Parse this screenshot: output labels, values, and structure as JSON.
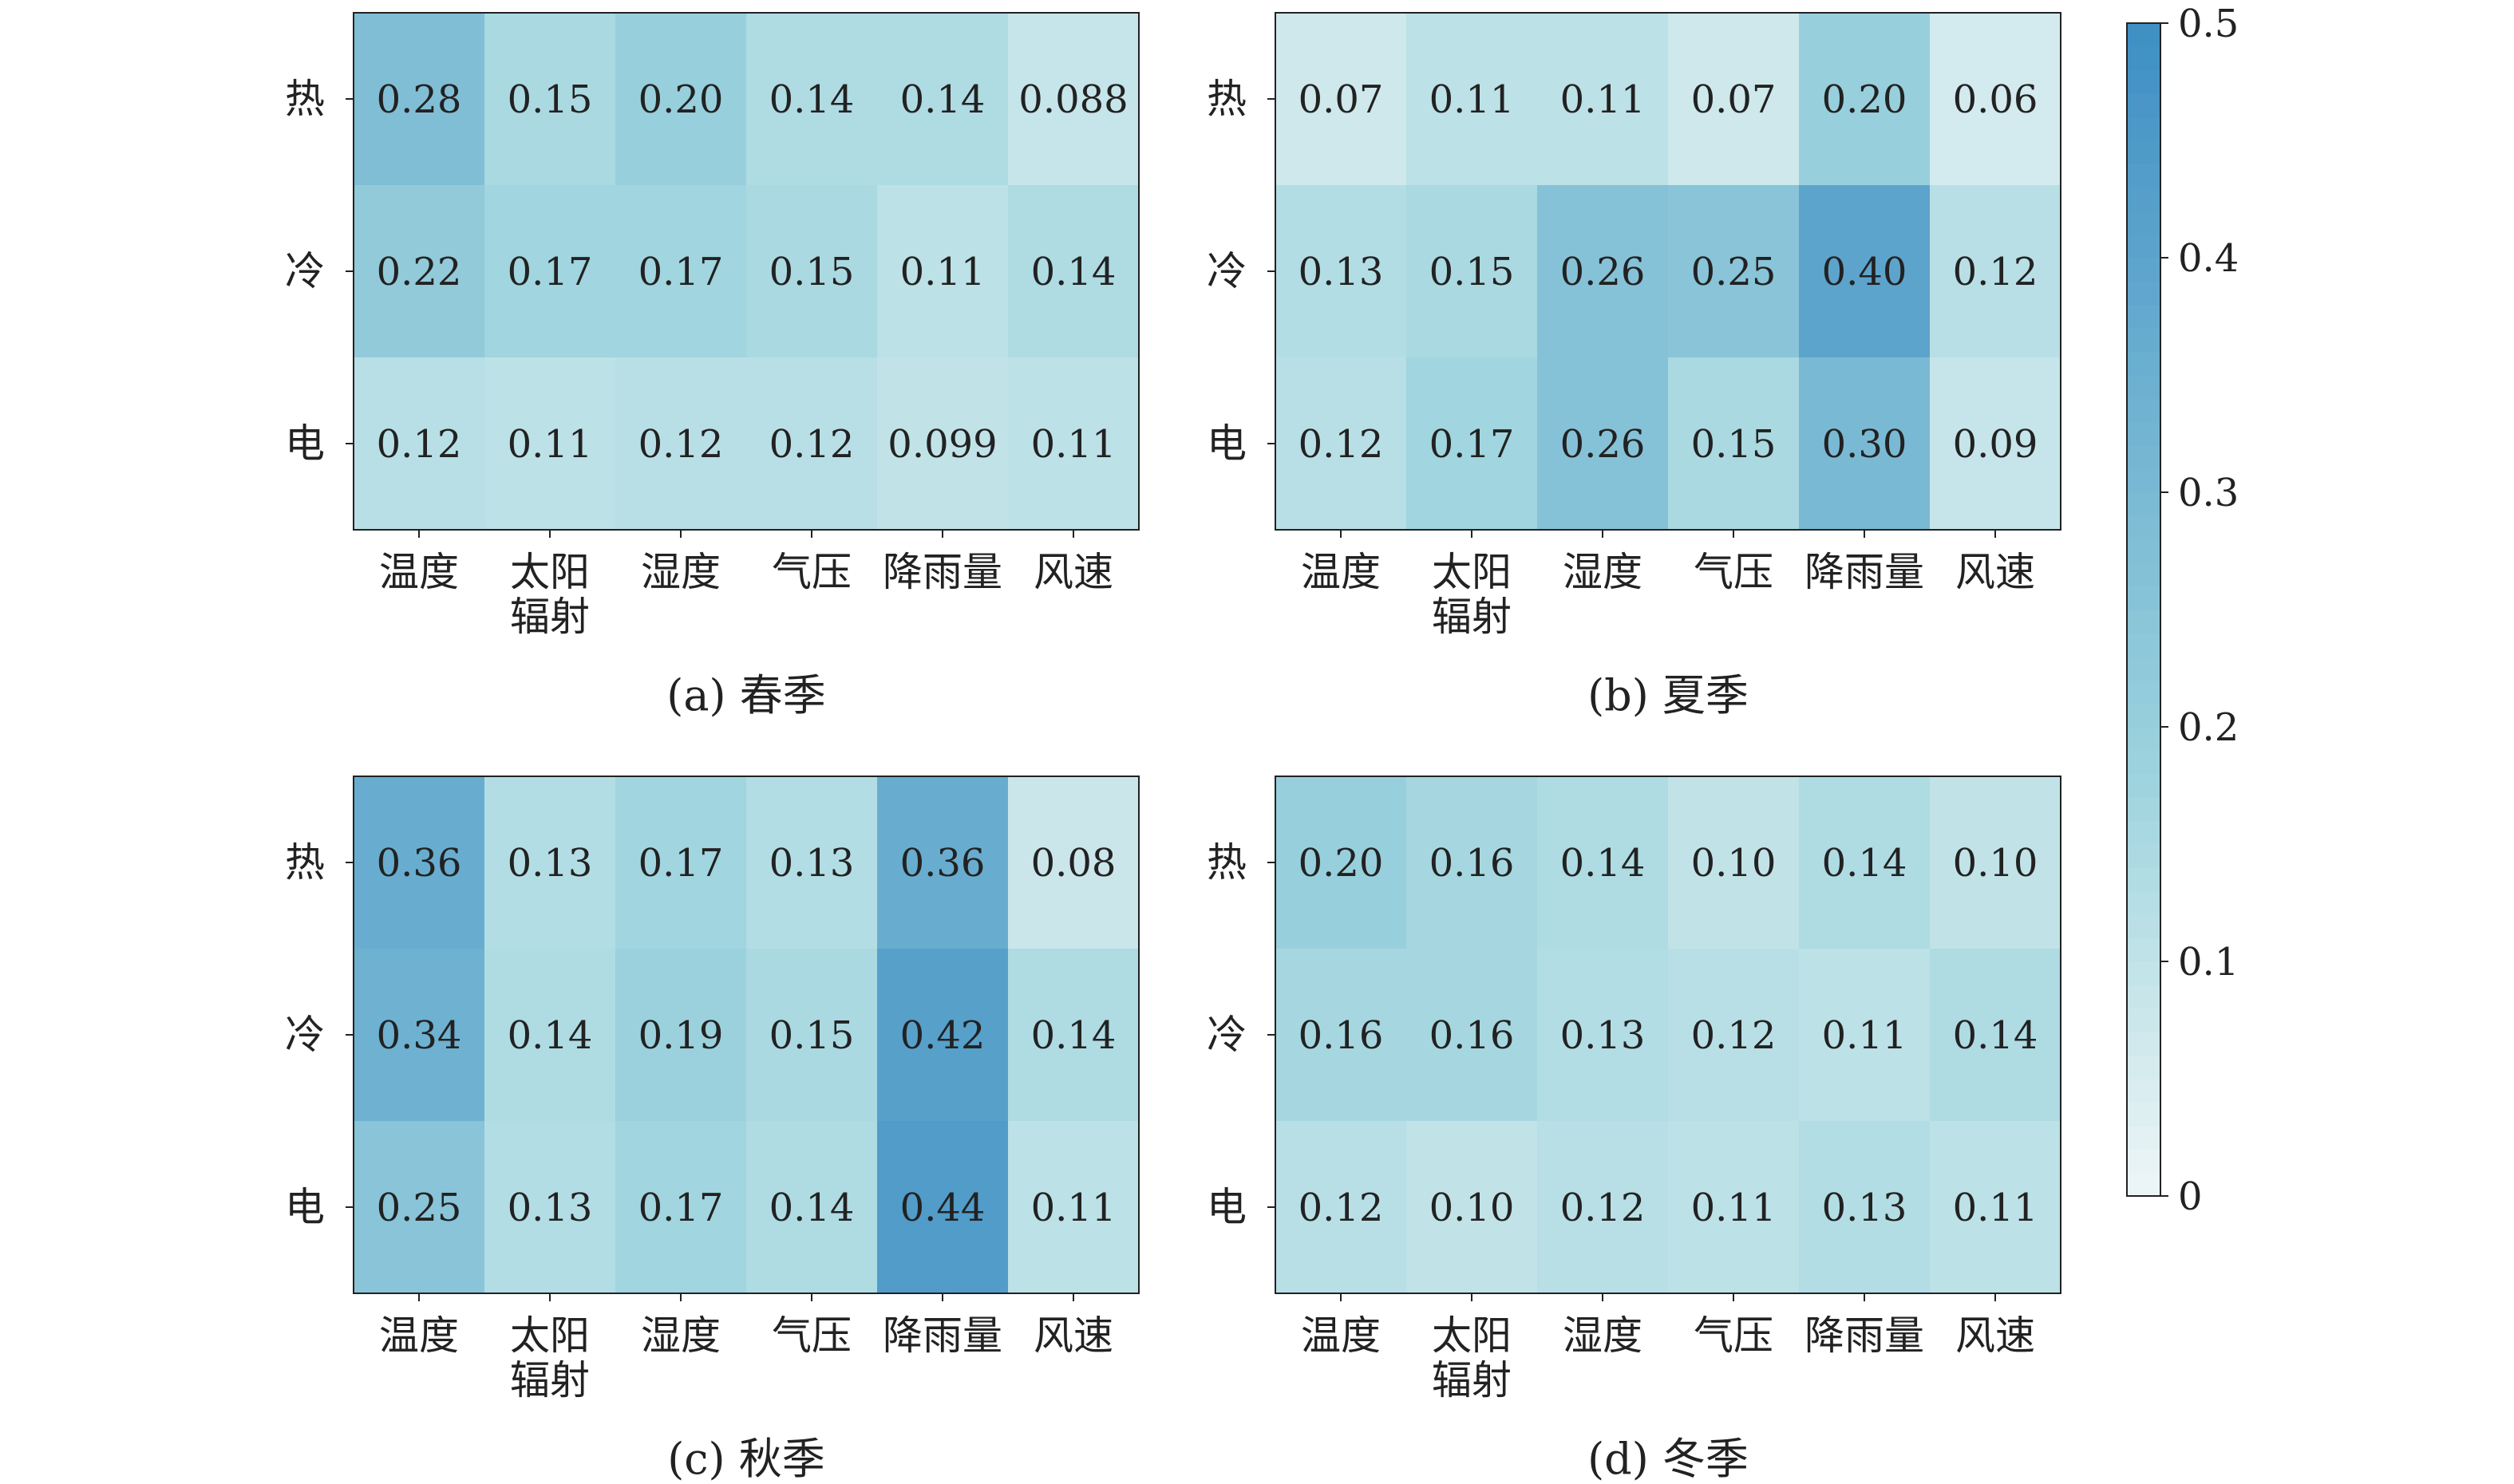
{
  "colorbar": {
    "min": 0,
    "max": 0.5,
    "ticks": [
      "0",
      "0.1",
      "0.2",
      "0.3",
      "0.4",
      "0.5"
    ],
    "tick_values": [
      0,
      0.1,
      0.2,
      0.3,
      0.4,
      0.5
    ],
    "color_low": "#eef6f6",
    "color_mid": "#9fd4de",
    "color_high": "#3f8fc4"
  },
  "chart_data": [
    {
      "type": "heatmap",
      "title": "(a) 春季",
      "rows": [
        "热",
        "冷",
        "电"
      ],
      "columns": [
        "温度",
        "太阳辐射",
        "湿度",
        "气压",
        "降雨量",
        "风速"
      ],
      "column_label_lines": [
        [
          "温度"
        ],
        [
          "太阳",
          "辐射"
        ],
        [
          "湿度"
        ],
        [
          "气压"
        ],
        [
          "降雨量"
        ],
        [
          "风速"
        ]
      ],
      "values": [
        [
          0.28,
          0.15,
          0.2,
          0.14,
          0.14,
          0.088
        ],
        [
          0.22,
          0.17,
          0.17,
          0.15,
          0.11,
          0.14
        ],
        [
          0.12,
          0.11,
          0.12,
          0.12,
          0.099,
          0.11
        ]
      ],
      "labels": [
        [
          "0.28",
          "0.15",
          "0.20",
          "0.14",
          "0.14",
          "0.088"
        ],
        [
          "0.22",
          "0.17",
          "0.17",
          "0.15",
          "0.11",
          "0.14"
        ],
        [
          "0.12",
          "0.11",
          "0.12",
          "0.12",
          "0.099",
          "0.11"
        ]
      ]
    },
    {
      "type": "heatmap",
      "title": "(b) 夏季",
      "rows": [
        "热",
        "冷",
        "电"
      ],
      "columns": [
        "温度",
        "太阳辐射",
        "湿度",
        "气压",
        "降雨量",
        "风速"
      ],
      "column_label_lines": [
        [
          "温度"
        ],
        [
          "太阳",
          "辐射"
        ],
        [
          "湿度"
        ],
        [
          "气压"
        ],
        [
          "降雨量"
        ],
        [
          "风速"
        ]
      ],
      "values": [
        [
          0.07,
          0.11,
          0.11,
          0.07,
          0.2,
          0.06
        ],
        [
          0.13,
          0.15,
          0.26,
          0.25,
          0.4,
          0.12
        ],
        [
          0.12,
          0.17,
          0.26,
          0.15,
          0.3,
          0.09
        ]
      ],
      "labels": [
        [
          "0.07",
          "0.11",
          "0.11",
          "0.07",
          "0.20",
          "0.06"
        ],
        [
          "0.13",
          "0.15",
          "0.26",
          "0.25",
          "0.40",
          "0.12"
        ],
        [
          "0.12",
          "0.17",
          "0.26",
          "0.15",
          "0.30",
          "0.09"
        ]
      ]
    },
    {
      "type": "heatmap",
      "title": "(c) 秋季",
      "rows": [
        "热",
        "冷",
        "电"
      ],
      "columns": [
        "温度",
        "太阳辐射",
        "湿度",
        "气压",
        "降雨量",
        "风速"
      ],
      "column_label_lines": [
        [
          "温度"
        ],
        [
          "太阳",
          "辐射"
        ],
        [
          "湿度"
        ],
        [
          "气压"
        ],
        [
          "降雨量"
        ],
        [
          "风速"
        ]
      ],
      "values": [
        [
          0.36,
          0.13,
          0.17,
          0.13,
          0.36,
          0.08
        ],
        [
          0.34,
          0.14,
          0.19,
          0.15,
          0.42,
          0.14
        ],
        [
          0.25,
          0.13,
          0.17,
          0.14,
          0.44,
          0.11
        ]
      ],
      "labels": [
        [
          "0.36",
          "0.13",
          "0.17",
          "0.13",
          "0.36",
          "0.08"
        ],
        [
          "0.34",
          "0.14",
          "0.19",
          "0.15",
          "0.42",
          "0.14"
        ],
        [
          "0.25",
          "0.13",
          "0.17",
          "0.14",
          "0.44",
          "0.11"
        ]
      ]
    },
    {
      "type": "heatmap",
      "title": "(d) 冬季",
      "rows": [
        "热",
        "冷",
        "电"
      ],
      "columns": [
        "温度",
        "太阳辐射",
        "湿度",
        "气压",
        "降雨量",
        "风速"
      ],
      "column_label_lines": [
        [
          "温度"
        ],
        [
          "太阳",
          "辐射"
        ],
        [
          "湿度"
        ],
        [
          "气压"
        ],
        [
          "降雨量"
        ],
        [
          "风速"
        ]
      ],
      "values": [
        [
          0.2,
          0.16,
          0.14,
          0.1,
          0.14,
          0.1
        ],
        [
          0.16,
          0.16,
          0.13,
          0.12,
          0.11,
          0.14
        ],
        [
          0.12,
          0.1,
          0.12,
          0.11,
          0.13,
          0.11
        ]
      ],
      "labels": [
        [
          "0.20",
          "0.16",
          "0.14",
          "0.10",
          "0.14",
          "0.10"
        ],
        [
          "0.16",
          "0.16",
          "0.13",
          "0.12",
          "0.11",
          "0.14"
        ],
        [
          "0.12",
          "0.10",
          "0.12",
          "0.11",
          "0.13",
          "0.11"
        ]
      ]
    }
  ]
}
